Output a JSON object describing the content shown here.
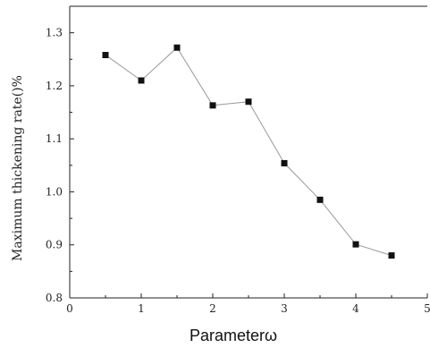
{
  "chart_data": {
    "type": "line",
    "title": "",
    "xlabel": "Parameterω",
    "ylabel": "Maximum thickening rate()%",
    "xlim": [
      0,
      5
    ],
    "ylim": [
      0.8,
      1.35
    ],
    "x_ticks": [
      "0",
      "1",
      "2",
      "3",
      "4",
      "5"
    ],
    "y_ticks": [
      "0.8",
      "0.9",
      "1.0",
      "1.1",
      "1.2",
      "1.3"
    ],
    "grid": false,
    "legend": "none",
    "series": [
      {
        "x": [
          0.5,
          1.0,
          1.5,
          2.0,
          2.5,
          3.0,
          3.5,
          4.0,
          4.5
        ],
        "y": [
          1.258,
          1.21,
          1.272,
          1.163,
          1.17,
          1.054,
          0.985,
          0.901,
          0.88
        ]
      }
    ],
    "colors": {
      "line": "#9a9a9a",
      "marker": "#111111",
      "axis": "#222222"
    }
  }
}
